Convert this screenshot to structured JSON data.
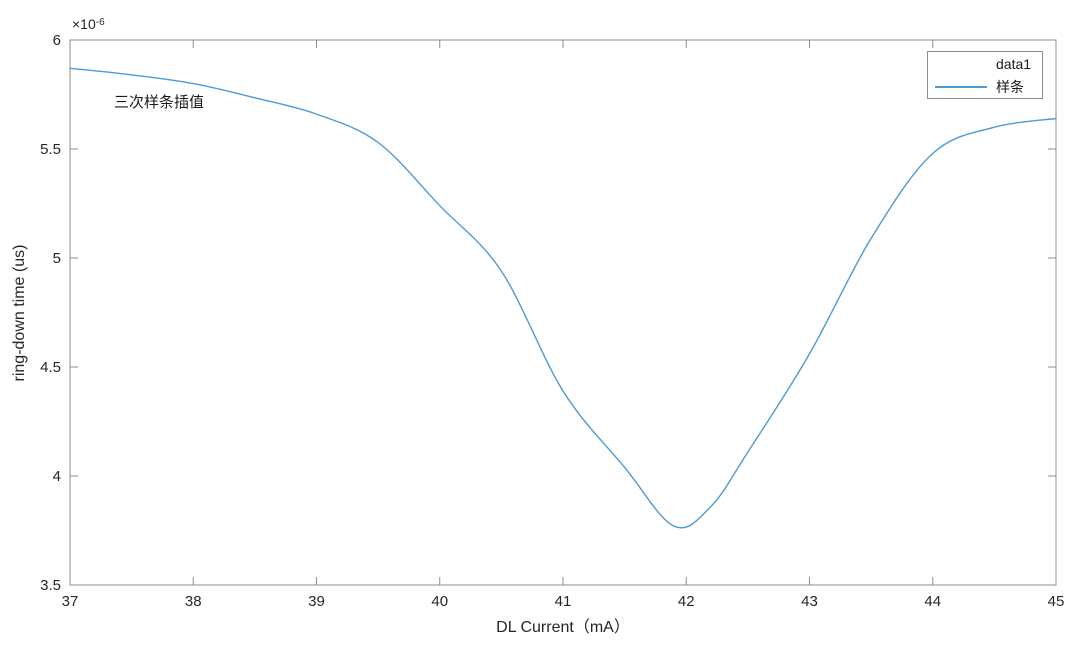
{
  "figure": {
    "background": "#ffffff"
  },
  "colors": {
    "line": "#4d9bd6",
    "axis": "#8c8c8c",
    "tick_text": "#262626"
  },
  "labels": {
    "xlabel": "DL Current（mA）",
    "ylabel": "ring-down time (us)",
    "annotation": "三次样条插值",
    "y_multiplier_prefix": "×10",
    "y_multiplier_exponent": "-6"
  },
  "legend": {
    "position": "top-right",
    "entries": [
      {
        "label": "data1",
        "swatch": "none"
      },
      {
        "label": "样条",
        "swatch": "line"
      }
    ]
  },
  "chart_data": {
    "type": "line",
    "title": "",
    "xlabel": "DL Current（mA）",
    "ylabel": "ring-down time (us)",
    "y_scale_note": "×10^-6",
    "xlim": [
      37,
      45
    ],
    "ylim": [
      3.5,
      6
    ],
    "xticks": [
      37,
      38,
      39,
      40,
      41,
      42,
      43,
      44,
      45
    ],
    "xtick_labels": [
      "37",
      "38",
      "39",
      "40",
      "41",
      "42",
      "43",
      "44",
      "45"
    ],
    "yticks": [
      3.5,
      4,
      4.5,
      5,
      5.5,
      6
    ],
    "ytick_labels": [
      "3.5",
      "4",
      "4.5",
      "5",
      "5.5",
      "6"
    ],
    "grid": false,
    "box": true,
    "legend_entries": [
      "data1",
      "样条"
    ],
    "annotation_text": "三次样条插值",
    "series": [
      {
        "name": "样条",
        "style": "spline",
        "color": "#4d9bd6",
        "points": [
          [
            37.0,
            5.87
          ],
          [
            37.5,
            5.84
          ],
          [
            38.0,
            5.8
          ],
          [
            38.5,
            5.735
          ],
          [
            39.0,
            5.66
          ],
          [
            39.5,
            5.53
          ],
          [
            40.0,
            5.24
          ],
          [
            40.5,
            4.94
          ],
          [
            41.0,
            4.39
          ],
          [
            41.5,
            4.04
          ],
          [
            41.9,
            3.77
          ],
          [
            42.2,
            3.86
          ],
          [
            42.5,
            4.11
          ],
          [
            43.0,
            4.56
          ],
          [
            43.5,
            5.09
          ],
          [
            44.0,
            5.48
          ],
          [
            44.5,
            5.6
          ],
          [
            45.0,
            5.64
          ]
        ]
      }
    ]
  }
}
